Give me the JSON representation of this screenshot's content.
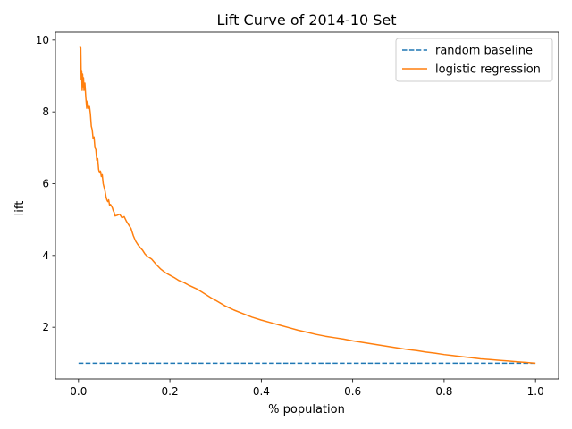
{
  "chart_data": {
    "type": "line",
    "title": "Lift Curve of 2014-10 Set",
    "xlabel": "% population",
    "ylabel": "lift",
    "xlim": [
      -0.0505,
      1.0505
    ],
    "ylim": [
      0.56,
      10.22
    ],
    "x_ticks": [
      0.0,
      0.2,
      0.4,
      0.6,
      0.8,
      1.0
    ],
    "x_tick_labels": [
      "0.0",
      "0.2",
      "0.4",
      "0.6",
      "0.8",
      "1.0"
    ],
    "y_ticks": [
      2,
      4,
      6,
      8,
      10
    ],
    "y_tick_labels": [
      "2",
      "4",
      "6",
      "8",
      "10"
    ],
    "grid": false,
    "legend_position": "top-right",
    "series": [
      {
        "name": "random baseline",
        "color": "#1f77b4",
        "style": "dashed",
        "x": [
          0.0,
          1.0
        ],
        "y": [
          1.0,
          1.0
        ]
      },
      {
        "name": "logistic regression",
        "color": "#ff7f0e",
        "style": "solid",
        "x": [
          0.002,
          0.004,
          0.005,
          0.006,
          0.007,
          0.008,
          0.009,
          0.01,
          0.011,
          0.012,
          0.013,
          0.014,
          0.016,
          0.018,
          0.02,
          0.022,
          0.024,
          0.026,
          0.028,
          0.03,
          0.032,
          0.034,
          0.036,
          0.038,
          0.04,
          0.042,
          0.044,
          0.046,
          0.048,
          0.05,
          0.052,
          0.054,
          0.056,
          0.058,
          0.06,
          0.062,
          0.064,
          0.066,
          0.068,
          0.07,
          0.072,
          0.074,
          0.076,
          0.078,
          0.08,
          0.085,
          0.09,
          0.095,
          0.1,
          0.105,
          0.11,
          0.115,
          0.12,
          0.125,
          0.13,
          0.135,
          0.14,
          0.145,
          0.15,
          0.16,
          0.17,
          0.18,
          0.19,
          0.2,
          0.21,
          0.22,
          0.23,
          0.24,
          0.25,
          0.26,
          0.27,
          0.28,
          0.29,
          0.3,
          0.32,
          0.34,
          0.36,
          0.38,
          0.4,
          0.42,
          0.44,
          0.46,
          0.48,
          0.5,
          0.52,
          0.54,
          0.56,
          0.58,
          0.6,
          0.62,
          0.64,
          0.66,
          0.68,
          0.7,
          0.72,
          0.74,
          0.76,
          0.78,
          0.8,
          0.82,
          0.84,
          0.86,
          0.88,
          0.9,
          0.92,
          0.94,
          0.96,
          0.98,
          1.0
        ],
        "y": [
          9.8,
          9.8,
          9.78,
          8.9,
          9.15,
          8.6,
          9.05,
          8.7,
          8.95,
          8.6,
          8.65,
          8.8,
          8.4,
          8.1,
          8.3,
          8.1,
          8.15,
          7.95,
          7.6,
          7.5,
          7.25,
          7.3,
          7.0,
          6.95,
          6.65,
          6.7,
          6.4,
          6.3,
          6.35,
          6.2,
          6.25,
          6.0,
          5.9,
          5.8,
          5.65,
          5.55,
          5.5,
          5.55,
          5.4,
          5.42,
          5.38,
          5.33,
          5.25,
          5.2,
          5.1,
          5.12,
          5.15,
          5.05,
          5.08,
          4.95,
          4.85,
          4.75,
          4.55,
          4.4,
          4.3,
          4.22,
          4.15,
          4.05,
          3.98,
          3.9,
          3.75,
          3.62,
          3.52,
          3.45,
          3.38,
          3.3,
          3.25,
          3.18,
          3.12,
          3.06,
          2.98,
          2.9,
          2.82,
          2.75,
          2.6,
          2.48,
          2.38,
          2.28,
          2.2,
          2.13,
          2.06,
          1.99,
          1.92,
          1.86,
          1.8,
          1.75,
          1.71,
          1.67,
          1.62,
          1.58,
          1.54,
          1.5,
          1.46,
          1.42,
          1.38,
          1.35,
          1.31,
          1.28,
          1.24,
          1.21,
          1.18,
          1.15,
          1.12,
          1.1,
          1.08,
          1.06,
          1.04,
          1.02,
          1.0
        ]
      }
    ]
  }
}
